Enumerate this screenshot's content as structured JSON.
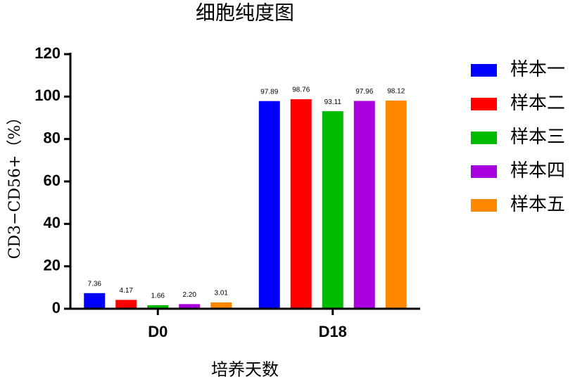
{
  "chart_data": {
    "type": "bar",
    "title": "细胞纯度图",
    "x_label": "培养天数",
    "y_label": "CD3−CD56+（%）",
    "categories": [
      "D0",
      "D18"
    ],
    "series": [
      {
        "name": "样本一",
        "color": "#0000ff",
        "values": [
          7.36,
          97.89
        ],
        "value_labels": [
          "7.36",
          "97.89"
        ]
      },
      {
        "name": "样本二",
        "color": "#ff0000",
        "values": [
          4.17,
          98.76
        ],
        "value_labels": [
          "4.17",
          "98.76"
        ]
      },
      {
        "name": "样本三",
        "color": "#00bb00",
        "values": [
          1.66,
          93.11
        ],
        "value_labels": [
          "1.66",
          "93.11"
        ]
      },
      {
        "name": "样本四",
        "color": "#aa00dd",
        "values": [
          2.2,
          97.96
        ],
        "value_labels": [
          "2.20",
          "97.96"
        ]
      },
      {
        "name": "样本五",
        "color": "#ff8800",
        "values": [
          3.01,
          98.12
        ],
        "value_labels": [
          "3.01",
          "98.12"
        ]
      }
    ],
    "ylim": [
      0,
      120
    ],
    "yticks": [
      0,
      20,
      40,
      60,
      80,
      100,
      120
    ],
    "grid": false,
    "legend": "right"
  }
}
